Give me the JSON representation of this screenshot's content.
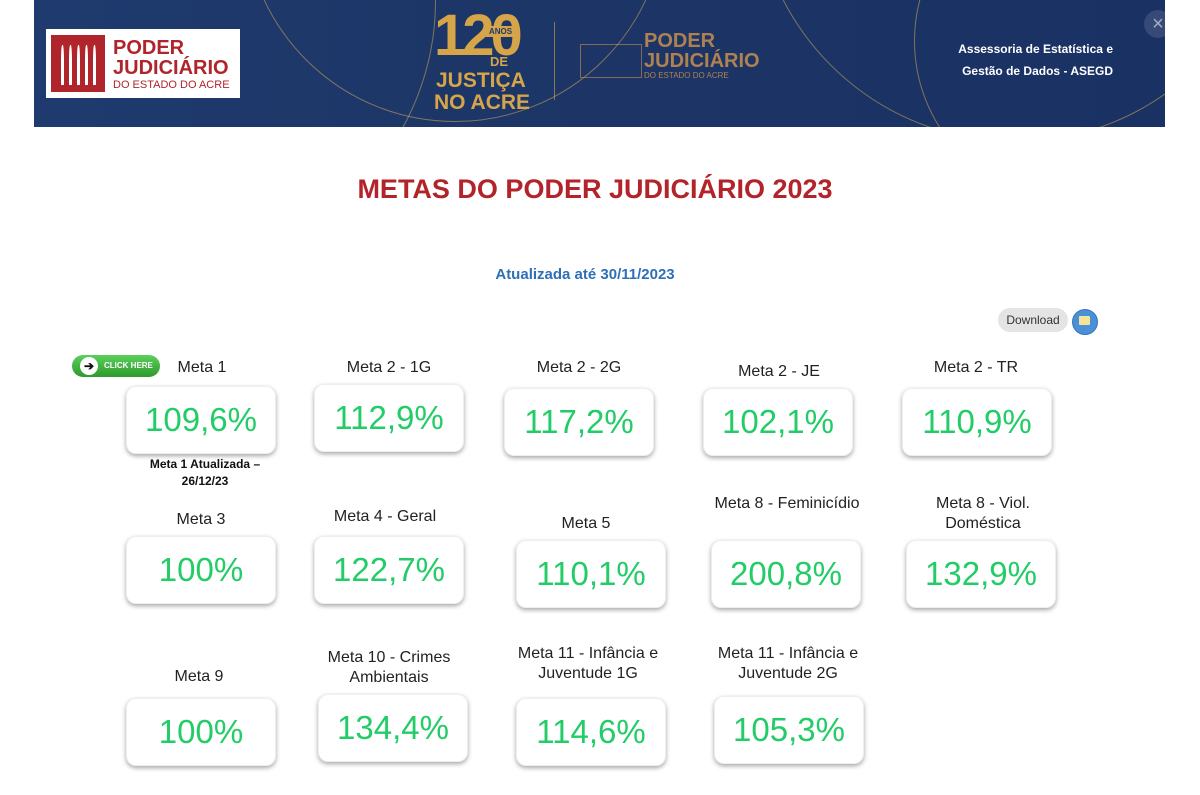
{
  "header": {
    "logo": {
      "line1": "PODER",
      "line2": "JUDICIÁRIO",
      "line3": "DO ESTADO DO ACRE"
    },
    "anniversary": {
      "number": "120",
      "tag": "ANOS",
      "de": "DE",
      "line1": "JUSTIÇA",
      "line2": "NO ACRE"
    },
    "logo2": {
      "line1": "PODER",
      "line2": "JUDICIÁRIO",
      "line3": "DO ESTADO DO ACRE"
    },
    "department": {
      "line1": "Assessoria de Estatística e",
      "line2": "Gestão de Dados - ASEGD"
    },
    "close_icon": "×"
  },
  "title": "METAS DO PODER JUDICIÁRIO 2023",
  "updated": "Atualizada até 30/11/2023",
  "download_label": "Download",
  "click_here_label": "CLICK HERE",
  "meta1_note": "Meta 1 Atualizada – 26/12/23",
  "metas": [
    {
      "label": "Meta 1",
      "value": "109,6%"
    },
    {
      "label": "Meta 2 - 1G",
      "value": "112,9%"
    },
    {
      "label": "Meta 2 - 2G",
      "value": "117,2%"
    },
    {
      "label": "Meta 2 - JE",
      "value": "102,1%"
    },
    {
      "label": "Meta 2 - TR",
      "value": "110,9%"
    },
    {
      "label": "Meta 3",
      "value": "100%"
    },
    {
      "label": "Meta 4 - Geral",
      "value": "122,7%"
    },
    {
      "label": "Meta 5",
      "value": "110,1%"
    },
    {
      "label": "Meta 8 - Feminicídio",
      "value": "200,8%"
    },
    {
      "label": "Meta 8 - Viol. Doméstica",
      "value": "132,9%"
    },
    {
      "label": "Meta 9",
      "value": "100%"
    },
    {
      "label": "Meta 10 - Crimes Ambientais",
      "value": "134,4%"
    },
    {
      "label": "Meta 11 - Infância e Juventude 1G",
      "value": "114,6%"
    },
    {
      "label": "Meta 11 - Infância e Juventude 2G",
      "value": "105,3%"
    }
  ],
  "colors": {
    "title": "#b3232a",
    "updated": "#2f6fb7",
    "value": "#22cc66",
    "banner": "#1f3a6e"
  }
}
